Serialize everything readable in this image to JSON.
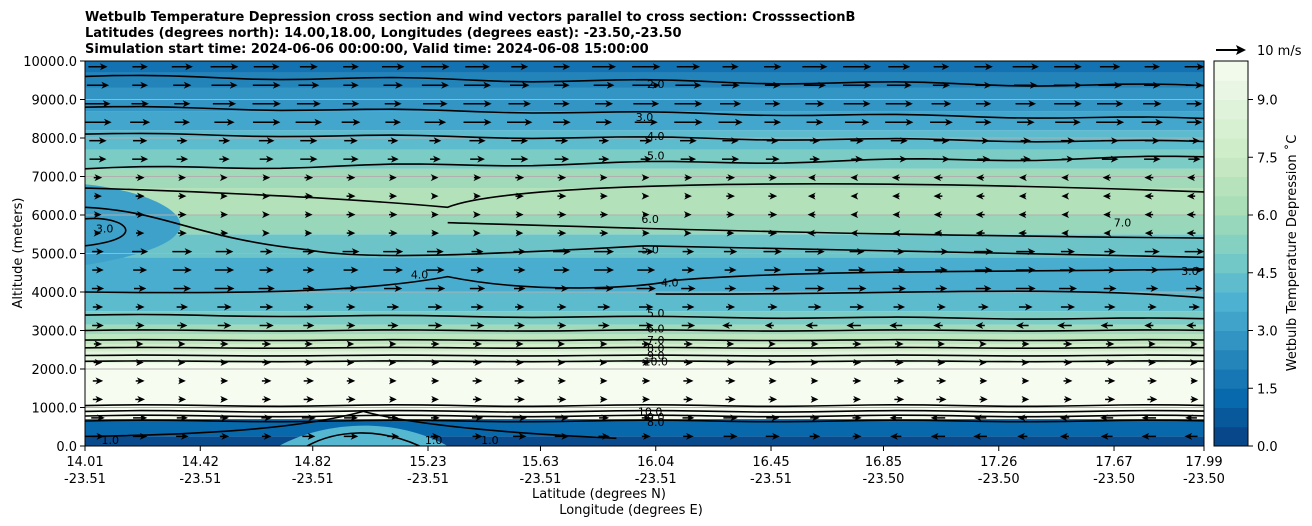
{
  "chart_data": {
    "type": "contour",
    "title_lines": [
      "Wetbulb Temperature Depression cross section and wind vectors parallel to cross section: CrosssectionB",
      "Latitudes (degrees north): 14.00,18.00, Longitudes (degrees east): -23.50,-23.50",
      "Simulation start time: 2024-06-06 00:00:00, Valid time: 2024-06-08 15:00:00"
    ],
    "xlabel": "Latitude (degrees N)",
    "xlabel2": "Longitude (degrees E)",
    "ylabel": "Altitude (meters)",
    "ylim": [
      0,
      10000
    ],
    "y_ticks": [
      "0.0",
      "1000.0",
      "2000.0",
      "3000.0",
      "4000.0",
      "5000.0",
      "6000.0",
      "7000.0",
      "8000.0",
      "9000.0",
      "10000.0"
    ],
    "x_ticks": [
      {
        "lat": "14.01",
        "lon": "-23.51"
      },
      {
        "lat": "14.42",
        "lon": "-23.51"
      },
      {
        "lat": "14.82",
        "lon": "-23.51"
      },
      {
        "lat": "15.23",
        "lon": "-23.51"
      },
      {
        "lat": "15.63",
        "lon": "-23.51"
      },
      {
        "lat": "16.04",
        "lon": "-23.51"
      },
      {
        "lat": "16.45",
        "lon": "-23.51"
      },
      {
        "lat": "16.85",
        "lon": "-23.50"
      },
      {
        "lat": "17.26",
        "lon": "-23.50"
      },
      {
        "lat": "17.67",
        "lon": "-23.50"
      },
      {
        "lat": "17.99",
        "lon": "-23.50"
      }
    ],
    "colorbar": {
      "label": "Wetbulb Temperature Depression ˚C",
      "range": [
        0,
        10
      ],
      "ticks": [
        "0.0",
        "1.5",
        "3.0",
        "4.5",
        "6.0",
        "7.5",
        "9.0"
      ],
      "colormap": "GnBu_r"
    },
    "quiver_key": {
      "label": "10 m/s",
      "speed": 10
    },
    "contour_labels": [
      {
        "text": "2.0",
        "lat": 16.04,
        "alt": 9400
      },
      {
        "text": "3.0",
        "lat": 16.0,
        "alt": 8550
      },
      {
        "text": "4.0",
        "lat": 16.04,
        "alt": 8050
      },
      {
        "text": "5.0",
        "lat": 16.04,
        "alt": 7550
      },
      {
        "text": "6.0",
        "lat": 16.02,
        "alt": 5900
      },
      {
        "text": "5.0",
        "lat": 16.02,
        "alt": 5100
      },
      {
        "text": "4.0",
        "lat": 16.09,
        "alt": 4250
      },
      {
        "text": "4.0",
        "lat": 15.2,
        "alt": 4450
      },
      {
        "text": "3.0",
        "lat": 14.08,
        "alt": 5650
      },
      {
        "text": "7.0",
        "lat": 17.7,
        "alt": 5800
      },
      {
        "text": "3.0",
        "lat": 17.94,
        "alt": 4550
      },
      {
        "text": "5.0",
        "lat": 16.04,
        "alt": 3450
      },
      {
        "text": "6.0",
        "lat": 16.04,
        "alt": 3050
      },
      {
        "text": "7.0",
        "lat": 16.04,
        "alt": 2750
      },
      {
        "text": "8.0",
        "lat": 16.04,
        "alt": 2550
      },
      {
        "text": "9.0",
        "lat": 16.04,
        "alt": 2350
      },
      {
        "text": "10.0",
        "lat": 16.04,
        "alt": 2200
      },
      {
        "text": "10.0",
        "lat": 16.02,
        "alt": 900
      },
      {
        "text": "9.0",
        "lat": 16.04,
        "alt": 750
      },
      {
        "text": "8.0",
        "lat": 16.04,
        "alt": 620
      },
      {
        "text": "1.0",
        "lat": 14.1,
        "alt": 150
      },
      {
        "text": "1.0",
        "lat": 15.25,
        "alt": 150
      },
      {
        "text": "1.0",
        "lat": 15.45,
        "alt": 150
      }
    ]
  }
}
